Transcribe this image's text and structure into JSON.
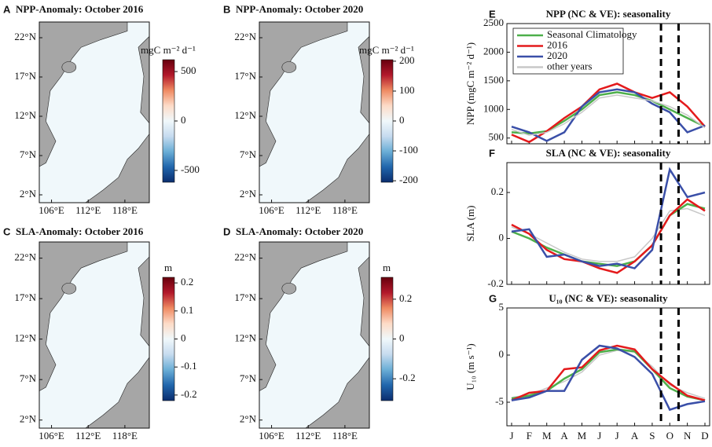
{
  "chart_data": [
    {
      "type": "map",
      "label": "A",
      "title": "NPP-Anomaly: October 2016",
      "xlim": [
        104,
        122
      ],
      "ylim": [
        1,
        24
      ],
      "xticks": [
        {
          "value": 106,
          "label": "106°E"
        },
        {
          "value": 112,
          "label": "112°E"
        },
        {
          "value": 118,
          "label": "118°E"
        }
      ],
      "yticks": [
        {
          "value": 22,
          "label": "22°N"
        },
        {
          "value": 17,
          "label": "17°N"
        },
        {
          "value": 12,
          "label": "12°N"
        },
        {
          "value": 7,
          "label": "7°N"
        },
        {
          "value": 2,
          "label": "2°N"
        }
      ],
      "colorbar": {
        "unit": "mgC m⁻² d⁻¹",
        "lim": [
          -620,
          620
        ],
        "ticks": [
          500,
          0,
          -500
        ],
        "colors": [
          "#0a2d6e",
          "#2166ac",
          "#6baed6",
          "#c6dbef",
          "#f0f8fb",
          "#fddbc7",
          "#ef8a62",
          "#b2182b",
          "#67000d"
        ]
      }
    },
    {
      "type": "map",
      "label": "B",
      "title": "NPP-Anomaly: October 2020",
      "xlim": [
        104,
        122
      ],
      "ylim": [
        1,
        24
      ],
      "xticks": [
        {
          "value": 106,
          "label": "106°E"
        },
        {
          "value": 112,
          "label": "112°E"
        },
        {
          "value": 118,
          "label": "118°E"
        }
      ],
      "yticks": [
        {
          "value": 22,
          "label": "22°N"
        },
        {
          "value": 17,
          "label": "17°N"
        },
        {
          "value": 12,
          "label": "12°N"
        },
        {
          "value": 7,
          "label": "7°N"
        },
        {
          "value": 2,
          "label": "2°N"
        }
      ],
      "colorbar": {
        "unit": "mgC m⁻² d⁻¹",
        "lim": [
          -205,
          205
        ],
        "ticks": [
          200,
          100,
          0,
          -100,
          -200
        ],
        "colors": [
          "#0a2d6e",
          "#2166ac",
          "#6baed6",
          "#c6dbef",
          "#f0f8fb",
          "#fddbc7",
          "#ef8a62",
          "#b2182b",
          "#67000d"
        ]
      }
    },
    {
      "type": "map",
      "label": "C",
      "title": "SLA-Anomaly: October 2016",
      "xlim": [
        104,
        122
      ],
      "ylim": [
        1,
        24
      ],
      "xticks": [
        {
          "value": 106,
          "label": "106°E"
        },
        {
          "value": 112,
          "label": "112°E"
        },
        {
          "value": 118,
          "label": "118°E"
        }
      ],
      "yticks": [
        {
          "value": 22,
          "label": "22°N"
        },
        {
          "value": 17,
          "label": "17°N"
        },
        {
          "value": 12,
          "label": "12°N"
        },
        {
          "value": 7,
          "label": "7°N"
        },
        {
          "value": 2,
          "label": "2°N"
        }
      ],
      "colorbar": {
        "unit": "m",
        "lim": [
          -0.22,
          0.22
        ],
        "ticks": [
          0.2,
          0.1,
          0,
          -0.1,
          -0.2
        ],
        "colors": [
          "#0a2d6e",
          "#2166ac",
          "#6baed6",
          "#c6dbef",
          "#f0f8fb",
          "#fddbc7",
          "#ef8a62",
          "#b2182b",
          "#67000d"
        ]
      }
    },
    {
      "type": "map",
      "label": "D",
      "title": "SLA-Anomaly: October 2020",
      "xlim": [
        104,
        122
      ],
      "ylim": [
        1,
        24
      ],
      "xticks": [
        {
          "value": 106,
          "label": "106°E"
        },
        {
          "value": 112,
          "label": "112°E"
        },
        {
          "value": 118,
          "label": "118°E"
        }
      ],
      "yticks": [
        {
          "value": 22,
          "label": "22°N"
        },
        {
          "value": 17,
          "label": "17°N"
        },
        {
          "value": 12,
          "label": "12°N"
        },
        {
          "value": 7,
          "label": "7°N"
        },
        {
          "value": 2,
          "label": "2°N"
        }
      ],
      "colorbar": {
        "unit": "m",
        "lim": [
          -0.31,
          0.31
        ],
        "ticks": [
          0.2,
          0,
          -0.2
        ],
        "colors": [
          "#0a2d6e",
          "#2166ac",
          "#6baed6",
          "#c6dbef",
          "#f0f8fb",
          "#fddbc7",
          "#ef8a62",
          "#b2182b",
          "#67000d"
        ]
      }
    },
    {
      "type": "line",
      "label": "E",
      "title": "NPP (NC & VE): seasonality",
      "ylabel": "NPP (mgC m⁻² d⁻¹)",
      "ylim": [
        400,
        2500
      ],
      "yticks": [
        500,
        1000,
        1500,
        2000,
        2500
      ],
      "vlines": [
        8.5,
        9.5
      ],
      "legend": "top-left",
      "series": [
        {
          "name": "Seasonal Climatology",
          "color": "#4daf4a",
          "values": [
            600,
            580,
            620,
            800,
            1000,
            1250,
            1300,
            1250,
            1150,
            1000,
            850,
            700
          ]
        },
        {
          "name": "2016",
          "color": "#e41a1c",
          "values": [
            560,
            430,
            620,
            850,
            1050,
            1350,
            1450,
            1300,
            1200,
            1300,
            1050,
            700
          ]
        },
        {
          "name": "2020",
          "color": "#3a4fa8",
          "values": [
            700,
            600,
            450,
            600,
            1050,
            1300,
            1350,
            1300,
            1100,
            950,
            600,
            720
          ]
        },
        {
          "name": "other years",
          "color": "#c8c8c8",
          "values": [
            650,
            550,
            600,
            750,
            950,
            1200,
            1250,
            1200,
            1150,
            1050,
            900,
            680
          ]
        }
      ]
    },
    {
      "type": "line",
      "label": "F",
      "title": "SLA (NC & VE): seasonality",
      "ylabel": "SLA (m)",
      "ylim": [
        -0.2,
        0.33
      ],
      "yticks": [
        -0.2,
        0,
        0.2
      ],
      "vlines": [
        8.5,
        9.5
      ],
      "series": [
        {
          "color": "#c8c8c8",
          "values": [
            0.05,
            0.02,
            -0.02,
            -0.06,
            -0.09,
            -0.1,
            -0.1,
            -0.08,
            0.0,
            0.12,
            0.13,
            0.1
          ]
        },
        {
          "color": "#4daf4a",
          "values": [
            0.03,
            0.0,
            -0.04,
            -0.07,
            -0.1,
            -0.11,
            -0.12,
            -0.1,
            -0.03,
            0.1,
            0.15,
            0.13
          ]
        },
        {
          "color": "#e41a1c",
          "values": [
            0.06,
            0.02,
            -0.05,
            -0.09,
            -0.1,
            -0.13,
            -0.15,
            -0.1,
            -0.03,
            0.1,
            0.17,
            0.12
          ]
        },
        {
          "color": "#3a4fa8",
          "values": [
            0.03,
            0.04,
            -0.08,
            -0.07,
            -0.1,
            -0.12,
            -0.11,
            -0.13,
            -0.05,
            0.3,
            0.18,
            0.2
          ]
        }
      ]
    },
    {
      "type": "line",
      "label": "G",
      "title": "U₁₀ (NC & VE): seasonality",
      "ylabel": "U₁₀ (m s⁻¹)",
      "ylim": [
        -7.5,
        5
      ],
      "yticks": [
        -5,
        0,
        5
      ],
      "vlines": [
        8.5,
        9.5
      ],
      "categories": [
        "J",
        "F",
        "M",
        "A",
        "M",
        "J",
        "J",
        "A",
        "S",
        "O",
        "N",
        "D"
      ],
      "series": [
        {
          "color": "#c8c8c8",
          "values": [
            -4.5,
            -4.2,
            -3.5,
            -2.8,
            -1.8,
            0.0,
            0.5,
            0.3,
            -1.2,
            -3.2,
            -4.0,
            -4.6
          ]
        },
        {
          "color": "#4daf4a",
          "values": [
            -4.6,
            -4.3,
            -3.8,
            -2.5,
            -1.5,
            0.3,
            0.6,
            0.4,
            -1.5,
            -3.5,
            -4.4,
            -4.8
          ]
        },
        {
          "color": "#e41a1c",
          "values": [
            -4.8,
            -4.0,
            -3.8,
            -1.5,
            -1.3,
            0.5,
            1.0,
            0.6,
            -1.5,
            -3.0,
            -4.3,
            -4.8
          ]
        },
        {
          "color": "#3a4fa8",
          "values": [
            -4.8,
            -4.5,
            -3.8,
            -3.8,
            -0.5,
            1.0,
            0.7,
            -0.2,
            -2.0,
            -5.8,
            -5.2,
            -4.9
          ]
        }
      ]
    }
  ]
}
